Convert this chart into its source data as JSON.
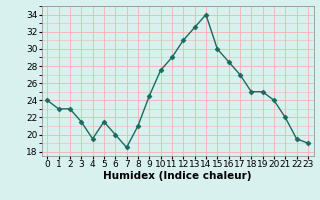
{
  "x": [
    0,
    1,
    2,
    3,
    4,
    5,
    6,
    7,
    8,
    9,
    10,
    11,
    12,
    13,
    14,
    15,
    16,
    17,
    18,
    19,
    20,
    21,
    22,
    23
  ],
  "y": [
    24,
    23,
    23,
    21.5,
    19.5,
    21.5,
    20,
    18.5,
    21,
    24.5,
    27.5,
    29,
    31,
    32.5,
    34,
    30,
    28.5,
    27,
    25,
    25,
    24,
    22,
    19.5,
    19
  ],
  "line_color": "#1a6b5e",
  "marker": "D",
  "marker_size": 2.5,
  "line_width": 1.0,
  "xlabel": "Humidex (Indice chaleur)",
  "xlabel_fontsize": 7.5,
  "ylabel_ticks": [
    18,
    20,
    22,
    24,
    26,
    28,
    30,
    32,
    34
  ],
  "xlim": [
    -0.5,
    23.5
  ],
  "ylim": [
    17.5,
    35
  ],
  "xtick_labels": [
    "0",
    "1",
    "2",
    "3",
    "4",
    "5",
    "6",
    "7",
    "8",
    "9",
    "10",
    "11",
    "12",
    "13",
    "14",
    "15",
    "16",
    "17",
    "18",
    "19",
    "20",
    "21",
    "22",
    "23"
  ],
  "background_color": "#d8f0ee",
  "grid_color": "#f5b8b8",
  "grid_color_major": "#f5b8b8",
  "tick_fontsize": 6.5
}
